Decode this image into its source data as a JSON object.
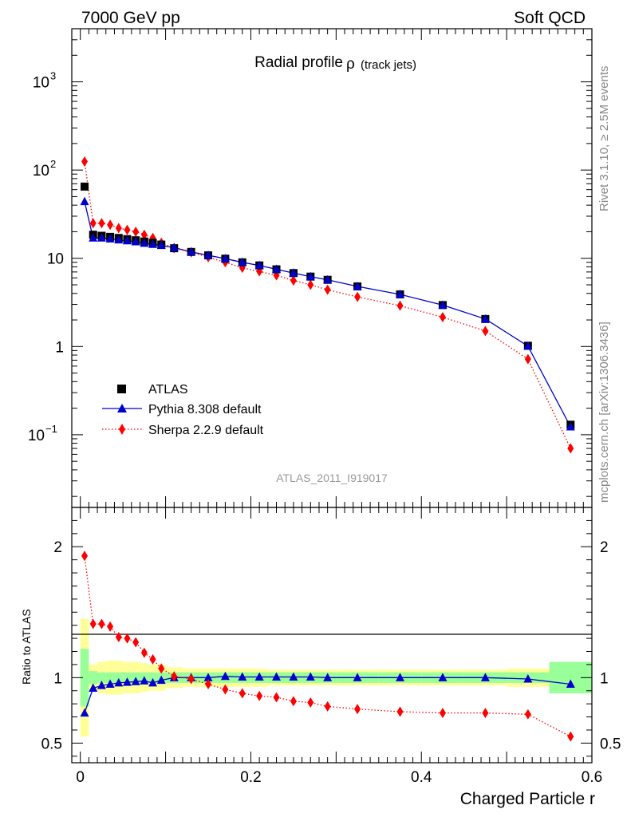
{
  "header": {
    "left": "7000 GeV pp",
    "right": "Soft QCD"
  },
  "side_labels": {
    "rivet": "Rivet 3.1.10, ≥ 2.5M events",
    "mcplots": "mcplots.cern.ch [arXiv:1306.3436]"
  },
  "chart_data": [
    {
      "type": "scatter",
      "panel": "main",
      "title": "Radial profile",
      "title_symbol": "ρ",
      "title_suffix": "(track jets)",
      "watermark": "ATLAS_2011_I919017",
      "yscale": "log",
      "ylim": [
        0.015,
        4000
      ],
      "xlim": [
        -0.01,
        0.6
      ],
      "y_ticks": [
        {
          "v": 1000,
          "label": "10",
          "exp": "3"
        },
        {
          "v": 100,
          "label": "10",
          "exp": "2"
        },
        {
          "v": 10,
          "label": "10",
          "exp": ""
        },
        {
          "v": 1,
          "label": "1",
          "exp": ""
        },
        {
          "v": 0.1,
          "label": "10",
          "exp": "−1"
        }
      ],
      "legend": {
        "placement": "left-center"
      },
      "series": [
        {
          "name": "ATLAS",
          "marker": "square",
          "color": "#000000",
          "x": [
            0.005,
            0.015,
            0.025,
            0.035,
            0.045,
            0.055,
            0.065,
            0.075,
            0.085,
            0.095,
            0.11,
            0.13,
            0.15,
            0.17,
            0.19,
            0.21,
            0.23,
            0.25,
            0.27,
            0.29,
            0.325,
            0.375,
            0.425,
            0.475,
            0.525,
            0.575
          ],
          "y": [
            65,
            18.5,
            18,
            17.5,
            17,
            16.5,
            16,
            15.5,
            15,
            14.3,
            13,
            11.8,
            10.8,
            9.9,
            9.0,
            8.3,
            7.5,
            6.8,
            6.2,
            5.7,
            4.8,
            3.9,
            2.95,
            2.05,
            1.02,
            0.13
          ]
        },
        {
          "name": "Pythia 8.308 default",
          "marker": "triangle",
          "color": "#0000cc",
          "line": "solid",
          "x": [
            0.005,
            0.015,
            0.025,
            0.035,
            0.045,
            0.055,
            0.065,
            0.075,
            0.085,
            0.095,
            0.11,
            0.13,
            0.15,
            0.17,
            0.19,
            0.21,
            0.23,
            0.25,
            0.27,
            0.29,
            0.325,
            0.375,
            0.425,
            0.475,
            0.525,
            0.575
          ],
          "y": [
            44,
            17,
            17,
            16.6,
            16.2,
            15.8,
            15.4,
            14.8,
            14.4,
            14.0,
            13.2,
            11.8,
            10.8,
            9.9,
            9.0,
            8.3,
            7.5,
            6.8,
            6.2,
            5.7,
            4.8,
            3.9,
            2.95,
            2.05,
            1.01,
            0.123
          ]
        },
        {
          "name": "Sherpa 2.2.9 default",
          "marker": "diamond",
          "color": "#ff0000",
          "line": "dotted",
          "x": [
            0.005,
            0.015,
            0.025,
            0.035,
            0.045,
            0.055,
            0.065,
            0.075,
            0.085,
            0.095,
            0.11,
            0.13,
            0.15,
            0.17,
            0.19,
            0.21,
            0.23,
            0.25,
            0.27,
            0.29,
            0.325,
            0.375,
            0.425,
            0.475,
            0.525,
            0.575
          ],
          "y": [
            125,
            25,
            25,
            24,
            22,
            21,
            20,
            18.5,
            17,
            15,
            13,
            11.7,
            10.3,
            9.0,
            7.8,
            7.1,
            6.4,
            5.6,
            5.0,
            4.4,
            3.65,
            2.9,
            2.15,
            1.5,
            0.72,
            0.07
          ]
        }
      ]
    },
    {
      "type": "scatter",
      "panel": "ratio",
      "ylabel": "Ratio to ATLAS",
      "xlabel": "Charged Particle r",
      "ylim": [
        0.35,
        2.3
      ],
      "xlim": [
        -0.01,
        0.6
      ],
      "x_ticks": [
        0,
        0.2,
        0.4,
        0.6
      ],
      "x_tick_labels": [
        "0",
        "0.2",
        "0.4",
        "0.6"
      ],
      "y_ticks": [
        0.5,
        1,
        2
      ],
      "y_tick_labels": [
        "0.5",
        "1",
        "2"
      ],
      "bands": {
        "bin_edges": [
          0.0,
          0.01,
          0.02,
          0.03,
          0.04,
          0.05,
          0.06,
          0.07,
          0.08,
          0.09,
          0.1,
          0.12,
          0.14,
          0.16,
          0.18,
          0.2,
          0.22,
          0.24,
          0.26,
          0.28,
          0.3,
          0.35,
          0.4,
          0.45,
          0.5,
          0.55,
          0.6
        ],
        "stat_halfwidth": [
          0.22,
          0.05,
          0.04,
          0.04,
          0.04,
          0.04,
          0.04,
          0.04,
          0.04,
          0.04,
          0.04,
          0.04,
          0.04,
          0.04,
          0.04,
          0.04,
          0.04,
          0.04,
          0.04,
          0.04,
          0.04,
          0.04,
          0.04,
          0.04,
          0.04,
          0.12
        ],
        "total_halfwidth": [
          0.45,
          0.1,
          0.12,
          0.13,
          0.13,
          0.12,
          0.12,
          0.11,
          0.1,
          0.1,
          0.08,
          0.07,
          0.07,
          0.07,
          0.07,
          0.07,
          0.06,
          0.06,
          0.06,
          0.06,
          0.06,
          0.06,
          0.06,
          0.06,
          0.07,
          0.12
        ],
        "stat_color": "#99ff99",
        "total_color": "#ffff99"
      },
      "series": [
        {
          "name": "Pythia 8.308 default",
          "marker": "triangle",
          "color": "#0000cc",
          "line": "solid",
          "x": [
            0.005,
            0.015,
            0.025,
            0.035,
            0.045,
            0.055,
            0.065,
            0.075,
            0.085,
            0.095,
            0.11,
            0.13,
            0.15,
            0.17,
            0.19,
            0.21,
            0.23,
            0.25,
            0.27,
            0.29,
            0.325,
            0.375,
            0.425,
            0.475,
            0.525,
            0.575
          ],
          "y": [
            0.73,
            0.92,
            0.94,
            0.95,
            0.96,
            0.965,
            0.97,
            0.975,
            0.96,
            0.98,
            1.0,
            1.0,
            1.0,
            1.01,
            1.005,
            1.005,
            1.005,
            1.005,
            1.005,
            1.0,
            1.0,
            1.0,
            1.0,
            1.0,
            0.99,
            0.95
          ]
        },
        {
          "name": "Sherpa 2.2.9 default",
          "marker": "diamond",
          "color": "#ff0000",
          "line": "dotted",
          "x": [
            0.005,
            0.015,
            0.025,
            0.035,
            0.045,
            0.055,
            0.065,
            0.075,
            0.085,
            0.095,
            0.11,
            0.13,
            0.15,
            0.17,
            0.19,
            0.21,
            0.23,
            0.25,
            0.27,
            0.29,
            0.325,
            0.375,
            0.425,
            0.475,
            0.525,
            0.575
          ],
          "y": [
            1.93,
            1.41,
            1.41,
            1.39,
            1.31,
            1.3,
            1.27,
            1.19,
            1.14,
            1.07,
            1.01,
            0.99,
            0.95,
            0.91,
            0.88,
            0.86,
            0.85,
            0.82,
            0.81,
            0.78,
            0.76,
            0.74,
            0.73,
            0.73,
            0.72,
            0.55
          ]
        }
      ]
    }
  ]
}
